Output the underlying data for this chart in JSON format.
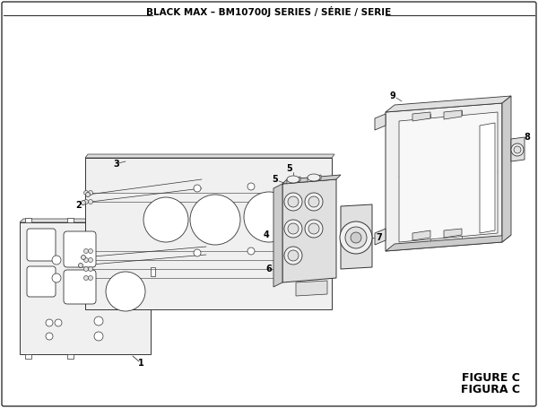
{
  "title": "BLACK MAX – BM10700J SERIES / SÉRIE / SERIE",
  "figure_label": "FIGURE C",
  "figura_label": "FIGURA C",
  "bg_color": "#ffffff",
  "line_color": "#333333",
  "light_fill": "#f0f0f0",
  "mid_fill": "#e0e0e0",
  "dark_fill": "#cccccc",
  "title_fontsize": 7.5,
  "label_fontsize": 7,
  "figure_width": 6.0,
  "figure_height": 4.55
}
